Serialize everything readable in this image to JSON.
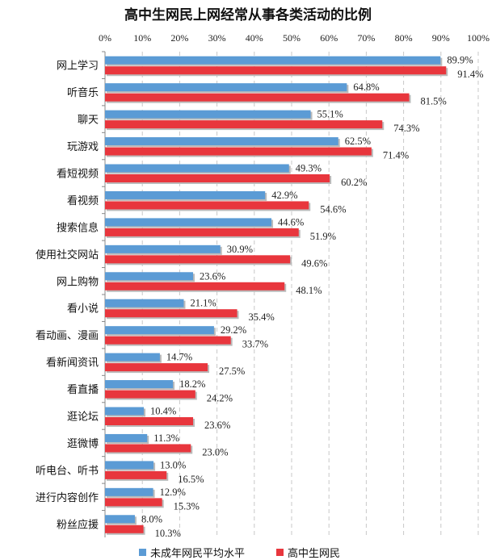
{
  "chart_data": {
    "type": "bar",
    "orientation": "horizontal",
    "title": "高中生网民上网经常从事各类活动的比例",
    "xlim": [
      0,
      100
    ],
    "xticks": [
      "0%",
      "10%",
      "20%",
      "30%",
      "40%",
      "50%",
      "60%",
      "70%",
      "80%",
      "90%",
      "100%"
    ],
    "grid": true,
    "legend_position": "bottom",
    "categories": [
      "网上学习",
      "听音乐",
      "聊天",
      "玩游戏",
      "看短视频",
      "看视频",
      "搜索信息",
      "使用社交网站",
      "网上购物",
      "看小说",
      "看动画、漫画",
      "看新闻资讯",
      "看直播",
      "逛论坛",
      "逛微博",
      "听电台、听书",
      "进行内容创作",
      "粉丝应援"
    ],
    "series": [
      {
        "name": "未成年网民平均水平",
        "color": "#5b9bd5",
        "values": [
          89.9,
          64.8,
          55.1,
          62.5,
          49.3,
          42.9,
          44.6,
          30.9,
          23.6,
          21.1,
          29.2,
          14.7,
          18.2,
          10.4,
          11.3,
          13.0,
          12.9,
          8.0
        ]
      },
      {
        "name": "高中生网民",
        "color": "#e8363d",
        "values": [
          91.4,
          81.5,
          74.3,
          71.4,
          60.2,
          54.6,
          51.9,
          49.6,
          48.1,
          35.4,
          33.7,
          27.5,
          24.2,
          23.6,
          23.0,
          16.5,
          15.3,
          10.3
        ]
      }
    ]
  }
}
